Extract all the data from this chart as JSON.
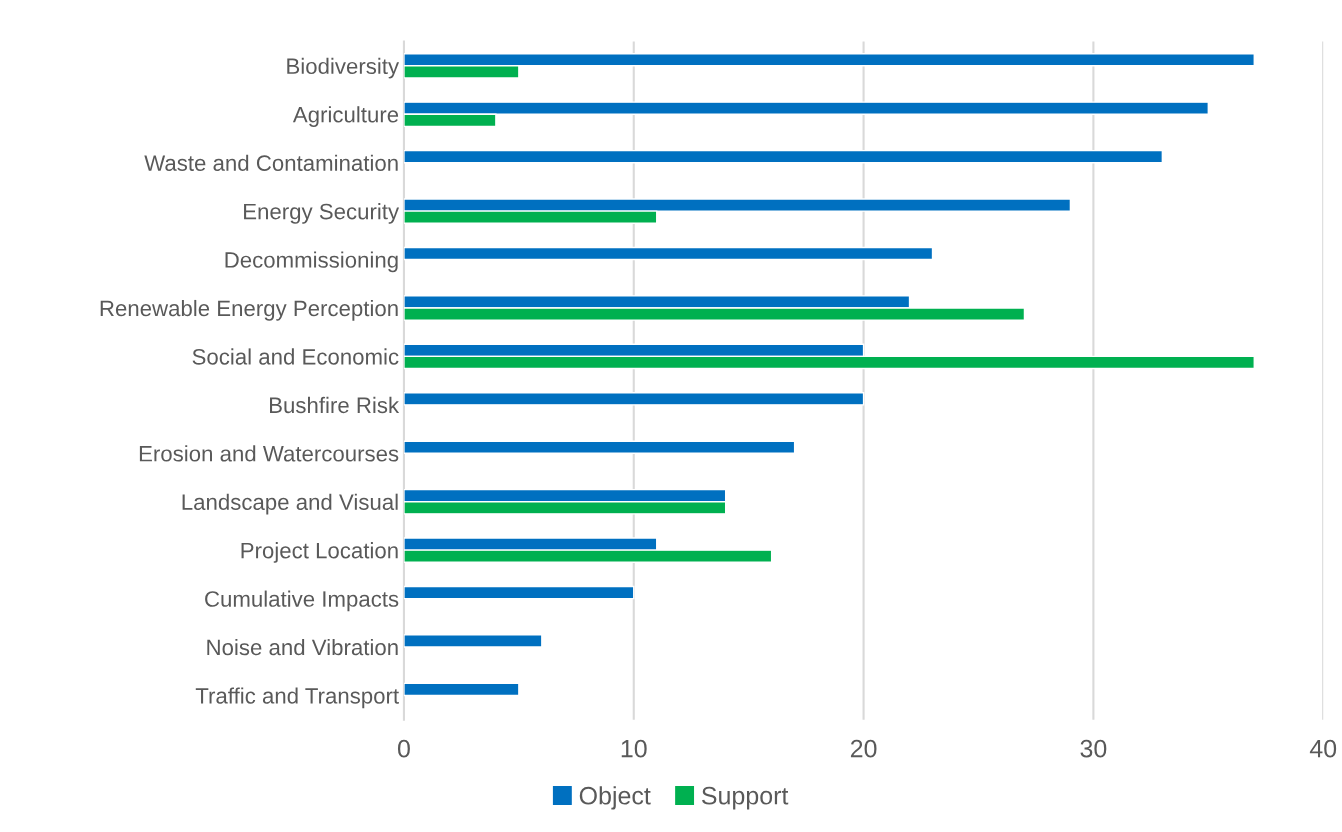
{
  "chart_data": {
    "type": "bar",
    "orientation": "horizontal",
    "categories": [
      "Biodiversity",
      "Agriculture",
      "Waste and Contamination",
      "Energy Security",
      "Decommissioning",
      "Renewable Energy Perception",
      "Social and Economic",
      "Bushfire Risk",
      "Erosion and Watercourses",
      "Landscape and Visual",
      "Project Location",
      "Cumulative Impacts",
      "Noise and Vibration",
      "Traffic and Transport"
    ],
    "series": [
      {
        "name": "Object",
        "color": "#0070c0",
        "values": [
          37,
          35,
          33,
          29,
          23,
          22,
          20,
          20,
          17,
          14,
          11,
          10,
          6,
          5
        ]
      },
      {
        "name": "Support",
        "color": "#00b050",
        "values": [
          5,
          4,
          null,
          11,
          null,
          27,
          37,
          null,
          null,
          14,
          16,
          null,
          null,
          null
        ]
      }
    ],
    "xlim": [
      0,
      40
    ],
    "xticks": [
      0,
      10,
      20,
      30,
      40
    ],
    "grid": "x",
    "legend": "bottom"
  }
}
